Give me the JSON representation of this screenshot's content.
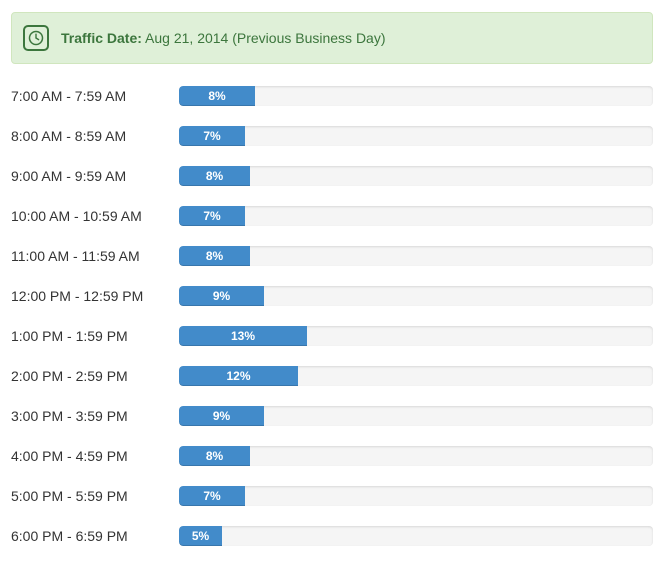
{
  "traffic": {
    "label": "Traffic Date:",
    "value": "Aug 21, 2014 (Previous Business Day)",
    "accent_color": "#3c763d",
    "background_color": "#dff0d8",
    "icon": "clock-icon"
  },
  "bar_color": "#428bca",
  "hours": [
    {
      "label": "7:00 AM - 7:59 AM",
      "percent_text": "8%",
      "percent": 8,
      "fill": 0.16
    },
    {
      "label": "8:00 AM - 8:59 AM",
      "percent_text": "7%",
      "percent": 7,
      "fill": 0.14
    },
    {
      "label": "9:00 AM - 9:59 AM",
      "percent_text": "8%",
      "percent": 8,
      "fill": 0.15
    },
    {
      "label": "10:00 AM - 10:59 AM",
      "percent_text": "7%",
      "percent": 7,
      "fill": 0.14
    },
    {
      "label": "11:00 AM - 11:59 AM",
      "percent_text": "8%",
      "percent": 8,
      "fill": 0.15
    },
    {
      "label": "12:00 PM - 12:59 PM",
      "percent_text": "9%",
      "percent": 9,
      "fill": 0.18
    },
    {
      "label": "1:00 PM - 1:59 PM",
      "percent_text": "13%",
      "percent": 13,
      "fill": 0.27
    },
    {
      "label": "2:00 PM - 2:59 PM",
      "percent_text": "12%",
      "percent": 12,
      "fill": 0.25
    },
    {
      "label": "3:00 PM - 3:59 PM",
      "percent_text": "9%",
      "percent": 9,
      "fill": 0.18
    },
    {
      "label": "4:00 PM - 4:59 PM",
      "percent_text": "8%",
      "percent": 8,
      "fill": 0.15
    },
    {
      "label": "5:00 PM - 5:59 PM",
      "percent_text": "7%",
      "percent": 7,
      "fill": 0.14
    },
    {
      "label": "6:00 PM - 6:59 PM",
      "percent_text": "5%",
      "percent": 5,
      "fill": 0.09
    }
  ]
}
